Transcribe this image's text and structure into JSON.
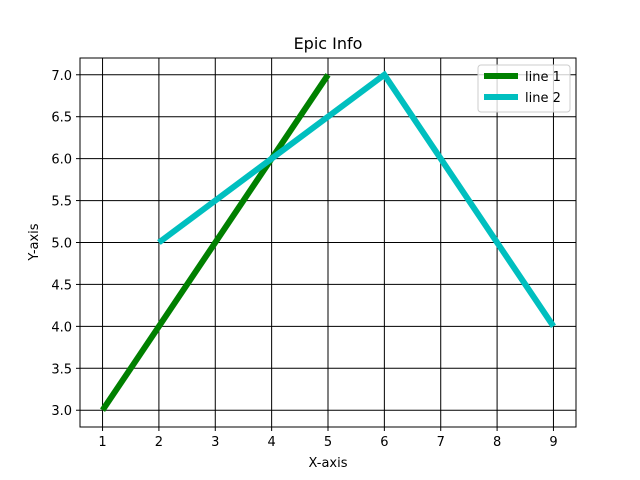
{
  "chart_data": {
    "type": "line",
    "title": "Epic Info",
    "xlabel": "X-axis",
    "ylabel": "Y-axis",
    "xlim": [
      0.6,
      9.4
    ],
    "ylim": [
      2.8,
      7.2
    ],
    "x_ticks": [
      1,
      2,
      3,
      4,
      5,
      6,
      7,
      8,
      9
    ],
    "y_ticks": [
      "3.0",
      "3.5",
      "4.0",
      "4.5",
      "5.0",
      "5.5",
      "6.0",
      "6.5",
      "7.0"
    ],
    "grid": true,
    "legend_position": "top-right",
    "series": [
      {
        "name": "line 1",
        "color": "#008000",
        "x": [
          1,
          5
        ],
        "y": [
          3,
          7
        ]
      },
      {
        "name": "line 2",
        "color": "#00bfbf",
        "x": [
          2,
          6,
          9
        ],
        "y": [
          5,
          7,
          4
        ]
      }
    ]
  }
}
